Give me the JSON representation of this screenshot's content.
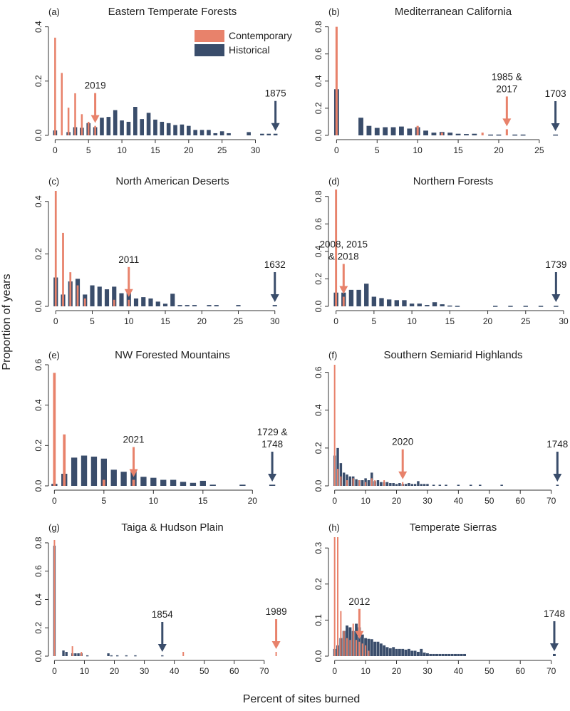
{
  "figure": {
    "ylabel": "Proportion of years",
    "xlabel": "Percent of sites burned",
    "legend": [
      {
        "label": "Contemporary",
        "color": "#E8826B"
      },
      {
        "label": "Historical",
        "color": "#3A4D6B"
      }
    ]
  },
  "colors": {
    "contemporary": "#E8826B",
    "historical": "#3A4D6B",
    "axis": "#333333"
  },
  "chart_data": [
    {
      "tag": "(a)",
      "title": "Eastern Temperate Forests",
      "type": "bar",
      "xlim": [
        -1,
        34
      ],
      "xticks": [
        0,
        5,
        10,
        15,
        20,
        25,
        30
      ],
      "ylim": [
        0,
        0.42
      ],
      "yticks": [
        0.0,
        0.2,
        0.4
      ],
      "ytick_labels": [
        "0.0",
        "0.2",
        "0.4"
      ],
      "bar_width": 0.6,
      "historical": {
        "x": [
          0,
          2,
          3,
          4,
          5,
          6,
          7,
          8,
          9,
          10,
          11,
          12,
          13,
          14,
          15,
          16,
          17,
          18,
          19,
          20,
          21,
          22,
          23,
          24,
          25,
          26,
          29,
          31,
          32,
          33
        ],
        "y": [
          0.018,
          0.012,
          0.03,
          0.028,
          0.045,
          0.03,
          0.065,
          0.068,
          0.093,
          0.055,
          0.05,
          0.105,
          0.06,
          0.083,
          0.058,
          0.05,
          0.045,
          0.038,
          0.04,
          0.035,
          0.02,
          0.02,
          0.02,
          0.008,
          0.015,
          0.008,
          0.012,
          0.006,
          0.006,
          0.006
        ]
      },
      "contemporary": {
        "x": [
          0,
          1,
          2,
          3,
          4,
          5,
          6
        ],
        "y": [
          0.36,
          0.23,
          0.102,
          0.155,
          0.078,
          0.05,
          0.035
        ]
      },
      "annotations": [
        {
          "label": "2019",
          "x": 6,
          "series": "contemporary"
        },
        {
          "label": "1875",
          "x": 33,
          "series": "historical"
        }
      ]
    },
    {
      "tag": "(b)",
      "title": "Mediterranean California",
      "type": "bar",
      "xlim": [
        -1,
        28
      ],
      "xticks": [
        0,
        5,
        10,
        15,
        20,
        25
      ],
      "ylim": [
        0,
        0.84
      ],
      "yticks": [
        0.0,
        0.2,
        0.4,
        0.6,
        0.8
      ],
      "ytick_labels": [
        "0.0",
        "0.2",
        "0.4",
        "0.6",
        "0.8"
      ],
      "bar_width": 0.6,
      "historical": {
        "x": [
          0,
          3,
          4,
          5,
          6,
          7,
          8,
          9,
          10,
          11,
          12,
          13,
          14,
          15,
          16,
          17,
          19,
          20,
          22,
          23,
          27
        ],
        "y": [
          0.34,
          0.13,
          0.07,
          0.055,
          0.06,
          0.06,
          0.065,
          0.05,
          0.06,
          0.035,
          0.02,
          0.025,
          0.02,
          0.012,
          0.01,
          0.012,
          0.006,
          0.006,
          0.006,
          0.006,
          0.006
        ]
      },
      "contemporary": {
        "x": [
          0,
          10,
          13,
          18,
          21
        ],
        "y": [
          0.8,
          0.07,
          0.02,
          0.02,
          0.045
        ]
      },
      "annotations": [
        {
          "label": "1985 &",
          "label2": "2017",
          "x": 21,
          "series": "contemporary"
        },
        {
          "label": "1703",
          "x": 27,
          "series": "historical"
        }
      ]
    },
    {
      "tag": "(c)",
      "title": "North American Deserts",
      "type": "bar",
      "xlim": [
        -1,
        31
      ],
      "xticks": [
        0,
        5,
        10,
        15,
        20,
        25,
        30
      ],
      "ylim": [
        0,
        0.44
      ],
      "yticks": [
        0.0,
        0.2,
        0.4
      ],
      "ytick_labels": [
        "0.0",
        "0.2",
        "0.4"
      ],
      "bar_width": 0.6,
      "historical": {
        "x": [
          0,
          1,
          2,
          3,
          4,
          5,
          6,
          7,
          8,
          9,
          10,
          11,
          12,
          13,
          14,
          15,
          16,
          17,
          18,
          19,
          21,
          22,
          25,
          30
        ],
        "y": [
          0.11,
          0.045,
          0.095,
          0.105,
          0.045,
          0.08,
          0.075,
          0.065,
          0.075,
          0.05,
          0.055,
          0.03,
          0.035,
          0.03,
          0.018,
          0.01,
          0.048,
          0.005,
          0.005,
          0.005,
          0.005,
          0.005,
          0.005,
          0.005
        ]
      },
      "contemporary": {
        "x": [
          0,
          1,
          2,
          3,
          4,
          8,
          10
        ],
        "y": [
          0.44,
          0.28,
          0.13,
          0.08,
          0.03,
          0.025,
          0.025
        ]
      },
      "annotations": [
        {
          "label": "2011",
          "x": 10,
          "series": "contemporary"
        },
        {
          "label": "1632",
          "x": 30,
          "series": "historical"
        }
      ]
    },
    {
      "tag": "(d)",
      "title": "Northern Forests",
      "type": "bar",
      "xlim": [
        -1,
        30
      ],
      "xticks": [
        0,
        5,
        10,
        15,
        20,
        25,
        30
      ],
      "ylim": [
        0,
        0.84
      ],
      "yticks": [
        0.0,
        0.2,
        0.4,
        0.6,
        0.8
      ],
      "ytick_labels": [
        "0.0",
        "0.2",
        "0.4",
        "0.6",
        "0.8"
      ],
      "bar_width": 0.6,
      "historical": {
        "x": [
          0,
          1,
          2,
          3,
          4,
          5,
          6,
          7,
          8,
          9,
          10,
          11,
          12,
          13,
          14,
          15,
          16,
          21,
          23,
          25,
          27,
          29
        ],
        "y": [
          0.1,
          0.1,
          0.12,
          0.12,
          0.165,
          0.07,
          0.06,
          0.05,
          0.045,
          0.045,
          0.02,
          0.02,
          0.01,
          0.03,
          0.015,
          0.006,
          0.004,
          0.004,
          0.004,
          0.004,
          0.004,
          0.004
        ]
      },
      "contemporary": {
        "x": [
          0,
          1
        ],
        "y": [
          0.85,
          0.07
        ]
      },
      "annotations": [
        {
          "label": "2008, 2015",
          "label2": "& 2018",
          "x": 1,
          "series": "contemporary"
        },
        {
          "label": "1739",
          "x": 29,
          "series": "historical"
        }
      ]
    },
    {
      "tag": "(e)",
      "title": "NW Forested Mountains",
      "type": "bar",
      "xlim": [
        -0.6,
        23
      ],
      "xticks": [
        0,
        5,
        10,
        15,
        20
      ],
      "ylim": [
        0,
        0.6
      ],
      "yticks": [
        0.0,
        0.2,
        0.4,
        0.6
      ],
      "ytick_labels": [
        "0.0",
        "0.2",
        "0.4",
        "0.6"
      ],
      "bar_width": 0.6,
      "historical": {
        "x": [
          0,
          1,
          2,
          3,
          4,
          5,
          6,
          7,
          8,
          9,
          10,
          11,
          12,
          13,
          14,
          15,
          16,
          19,
          22
        ],
        "y": [
          0.01,
          0.06,
          0.14,
          0.15,
          0.145,
          0.135,
          0.08,
          0.07,
          0.075,
          0.045,
          0.04,
          0.03,
          0.03,
          0.02,
          0.015,
          0.025,
          0.006,
          0.006,
          0.006
        ]
      },
      "contemporary": {
        "x": [
          0,
          1,
          5,
          8
        ],
        "y": [
          0.56,
          0.255,
          0.03,
          0.03
        ]
      },
      "annotations": [
        {
          "label": "2021",
          "x": 8,
          "series": "contemporary"
        },
        {
          "label": "1729 &",
          "label2": "1748",
          "x": 22,
          "series": "historical"
        }
      ]
    },
    {
      "tag": "(f)",
      "title": "Southern Semiarid Highlands",
      "type": "bar",
      "xlim": [
        -2,
        74
      ],
      "xticks": [
        0,
        10,
        20,
        30,
        40,
        50,
        60,
        70
      ],
      "ylim": [
        0,
        0.64
      ],
      "yticks": [
        0.0,
        0.2,
        0.4,
        0.6
      ],
      "ytick_labels": [
        "0.0",
        "0.2",
        "0.4",
        "0.6"
      ],
      "bar_width": 0.8,
      "historical": {
        "x": [
          0,
          1,
          2,
          3,
          4,
          5,
          6,
          7,
          8,
          9,
          10,
          11,
          12,
          13,
          14,
          15,
          16,
          17,
          18,
          19,
          20,
          21,
          22,
          23,
          24,
          25,
          26,
          27,
          28,
          29,
          30,
          32,
          34,
          36,
          40,
          44,
          47,
          54,
          72
        ],
        "y": [
          0.16,
          0.2,
          0.12,
          0.07,
          0.06,
          0.05,
          0.05,
          0.035,
          0.03,
          0.03,
          0.04,
          0.03,
          0.07,
          0.025,
          0.03,
          0.02,
          0.02,
          0.02,
          0.015,
          0.015,
          0.01,
          0.015,
          0.01,
          0.01,
          0.015,
          0.01,
          0.01,
          0.025,
          0.01,
          0.01,
          0.01,
          0.006,
          0.006,
          0.006,
          0.006,
          0.006,
          0.006,
          0.006,
          0.006
        ]
      },
      "contemporary": {
        "x": [
          0,
          1,
          2,
          4,
          6,
          8,
          10,
          12,
          13,
          16,
          22
        ],
        "y": [
          0.64,
          0.09,
          0.05,
          0.03,
          0.04,
          0.03,
          0.02,
          0.04,
          0.03,
          0.03,
          0.02
        ]
      },
      "annotations": [
        {
          "label": "2020",
          "x": 22,
          "series": "contemporary"
        },
        {
          "label": "1748",
          "x": 72,
          "series": "historical"
        }
      ]
    },
    {
      "tag": "(g)",
      "title": "Taiga & Hudson Plain",
      "type": "bar",
      "xlim": [
        -2,
        76
      ],
      "xticks": [
        0,
        10,
        20,
        30,
        40,
        50,
        60,
        70
      ],
      "ylim": [
        0,
        0.84
      ],
      "yticks": [
        0.0,
        0.2,
        0.4,
        0.6,
        0.8
      ],
      "ytick_labels": [
        "0.0",
        "0.2",
        "0.4",
        "0.6",
        "0.8"
      ],
      "bar_width": 0.8,
      "historical": {
        "x": [
          0,
          3,
          4,
          6,
          7,
          8,
          9,
          11,
          18,
          19,
          21,
          24,
          27,
          36
        ],
        "y": [
          0.78,
          0.04,
          0.03,
          0.02,
          0.02,
          0.02,
          0.02,
          0.006,
          0.02,
          0.006,
          0.006,
          0.006,
          0.006,
          0.006
        ]
      },
      "contemporary": {
        "x": [
          0,
          6,
          9,
          43,
          74
        ],
        "y": [
          0.82,
          0.07,
          0.03,
          0.03,
          0.03
        ]
      },
      "annotations": [
        {
          "label": "1854",
          "x": 36,
          "series": "historical"
        },
        {
          "label": "1989",
          "x": 74,
          "series": "contemporary"
        }
      ]
    },
    {
      "tag": "(h)",
      "title": "Temperate Sierras",
      "type": "bar",
      "xlim": [
        -2,
        74
      ],
      "xticks": [
        0,
        10,
        20,
        30,
        40,
        50,
        60,
        70
      ],
      "ylim": [
        0,
        0.33
      ],
      "yticks": [
        0.0,
        0.1,
        0.2,
        0.3
      ],
      "ytick_labels": [
        "0.0",
        "0.1",
        "0.2",
        "0.3"
      ],
      "bar_width": 0.9,
      "historical": {
        "x": [
          0,
          1,
          2,
          3,
          4,
          5,
          6,
          7,
          8,
          9,
          10,
          11,
          12,
          13,
          14,
          15,
          16,
          17,
          18,
          19,
          20,
          21,
          22,
          23,
          24,
          25,
          26,
          27,
          28,
          29,
          30,
          31,
          32,
          33,
          34,
          35,
          36,
          37,
          38,
          39,
          40,
          41,
          42,
          71
        ],
        "y": [
          0.02,
          0.03,
          0.05,
          0.07,
          0.085,
          0.08,
          0.07,
          0.09,
          0.08,
          0.06,
          0.05,
          0.048,
          0.047,
          0.04,
          0.04,
          0.035,
          0.03,
          0.025,
          0.022,
          0.025,
          0.02,
          0.02,
          0.02,
          0.018,
          0.02,
          0.015,
          0.015,
          0.012,
          0.02,
          0.01,
          0.008,
          0.006,
          0.006,
          0.006,
          0.006,
          0.006,
          0.006,
          0.006,
          0.006,
          0.006,
          0.006,
          0.006,
          0.006,
          0.006
        ]
      },
      "contemporary": {
        "x": [
          0,
          1,
          2,
          3,
          4,
          5,
          6,
          7,
          8,
          9,
          10,
          11
        ],
        "y": [
          0.33,
          0.33,
          0.125,
          0.07,
          0.05,
          0.045,
          0.09,
          0.045,
          0.04,
          0.035,
          0.03,
          0.015
        ]
      },
      "annotations": [
        {
          "label": "2012",
          "x": 8,
          "series": "contemporary"
        },
        {
          "label": "1748",
          "x": 71,
          "series": "historical"
        }
      ]
    }
  ]
}
